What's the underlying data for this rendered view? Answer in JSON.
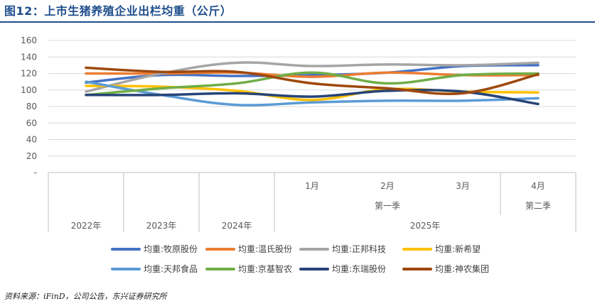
{
  "title": "图12：上市生猪养殖企业出栏均重（公斤）",
  "source": "资料来源：iFinD，公司公告，东兴证券研究所",
  "chart_data": {
    "type": "line",
    "title": "图12：上市生猪养殖企业出栏均重（公斤）",
    "ylim": [
      0,
      160
    ],
    "yticks": [
      "-",
      "20",
      "40",
      "60",
      "80",
      "100",
      "120",
      "140",
      "160"
    ],
    "x": [
      "2022年",
      "2023年",
      "2024年",
      "1月",
      "2月",
      "3月",
      "4月"
    ],
    "x_groups": [
      {
        "label": "2022年",
        "items": [
          {
            "label": "2022年",
            "points": [
              0
            ]
          }
        ]
      },
      {
        "label": "2023年",
        "items": [
          {
            "label": "2023年",
            "points": [
              1
            ]
          }
        ]
      },
      {
        "label": "2024年",
        "items": [
          {
            "label": "2024年",
            "points": [
              2
            ]
          }
        ]
      },
      {
        "label": "2025年",
        "items": [
          {
            "label": "第一季",
            "points": [
              3,
              4,
              5
            ]
          },
          {
            "label": "第二季",
            "points": [
              6
            ]
          }
        ]
      }
    ],
    "series": [
      {
        "name": "均重:牧原股份",
        "color": "#4472c4",
        "values": [
          109,
          118,
          117,
          118,
          121,
          129,
          130
        ]
      },
      {
        "name": "均重:温氏股份",
        "color": "#ed7d31",
        "values": [
          120,
          120,
          121,
          116,
          121,
          118,
          118
        ]
      },
      {
        "name": "均重:正邦科技",
        "color": "#a5a5a5",
        "values": [
          98,
          120,
          133,
          129,
          131,
          130,
          133
        ]
      },
      {
        "name": "均重:新希望",
        "color": "#ffc000",
        "values": [
          105,
          104,
          99,
          88,
          101,
          98,
          97
        ]
      },
      {
        "name": "均重:天邦食品",
        "color": "#5b9bd5",
        "values": [
          110,
          94,
          82,
          85,
          87,
          87,
          90
        ]
      },
      {
        "name": "均重:京基智农",
        "color": "#70ad47",
        "values": [
          94,
          102,
          108,
          121,
          108,
          118,
          120
        ]
      },
      {
        "name": "均重:东瑞股份",
        "color": "#264478",
        "values": [
          94,
          94,
          96,
          92,
          99,
          98,
          83
        ]
      },
      {
        "name": "均重:神农集团",
        "color": "#9e480e",
        "values": [
          127,
          122,
          122,
          108,
          102,
          96,
          119
        ]
      }
    ]
  }
}
